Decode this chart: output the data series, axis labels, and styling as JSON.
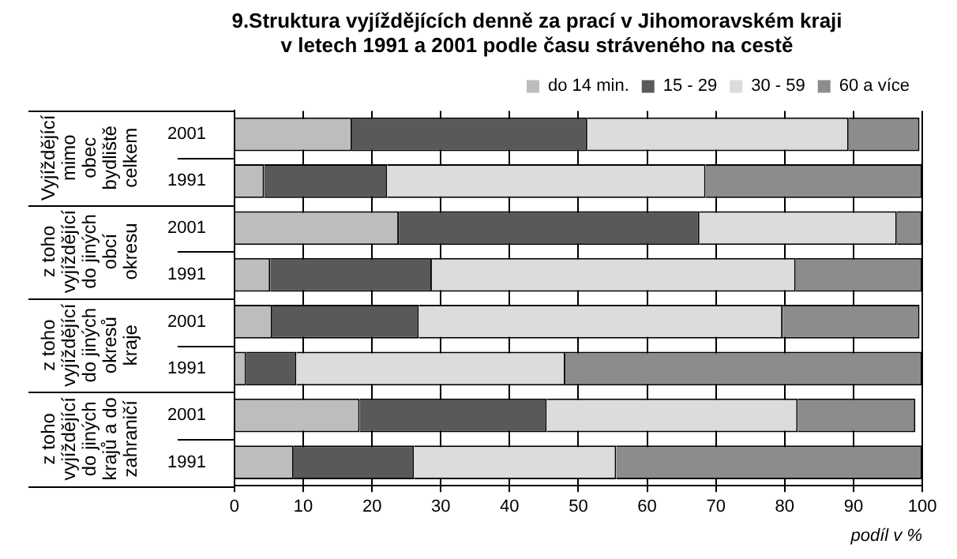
{
  "chart_data": {
    "type": "bar",
    "orientation": "horizontal",
    "stacked": true,
    "title": "9.Struktura vyjíždějících denně za prací v Jihomoravském kraji\nv letech 1991 a 2001 podle času stráveného na cestě",
    "xlabel": "podíl v %",
    "categories": [
      "2001",
      "1991",
      "2001",
      "1991",
      "2001",
      "1991",
      "2001",
      "1991"
    ],
    "annotations": [
      "Vyjíždějící mimo obec bydliště celkem",
      "z toho vyjíždějící do jiných obcí okresu",
      "z toho vyjíždějící do jiných okresů kraje",
      "z toho vyjíždějící do jiných krajů a do zahraničí"
    ],
    "series": [
      {
        "name": "do 14 min.",
        "color": "#bdbdbd",
        "values": [
          17.1,
          4.3,
          23.9,
          5.2,
          5.5,
          1.7,
          18.2,
          8.6
        ]
      },
      {
        "name": "15 - 29",
        "color": "#595959",
        "values": [
          34.2,
          17.9,
          43.7,
          23.5,
          21.3,
          7.3,
          27.2,
          17.5
        ]
      },
      {
        "name": "30 - 59",
        "color": "#dcdcdc",
        "values": [
          38.0,
          46.3,
          28.7,
          52.9,
          52.9,
          39.1,
          36.5,
          29.4
        ]
      },
      {
        "name": "60 a více",
        "color": "#8c8c8c",
        "values": [
          10.3,
          31.5,
          3.7,
          18.4,
          19.9,
          51.9,
          17.1,
          44.5
        ]
      }
    ],
    "xlim": [
      0,
      100
    ],
    "xticks": [
      0,
      10,
      20,
      30,
      40,
      50,
      60,
      70,
      80,
      90,
      100
    ],
    "grid": "x",
    "legend": "top right"
  }
}
